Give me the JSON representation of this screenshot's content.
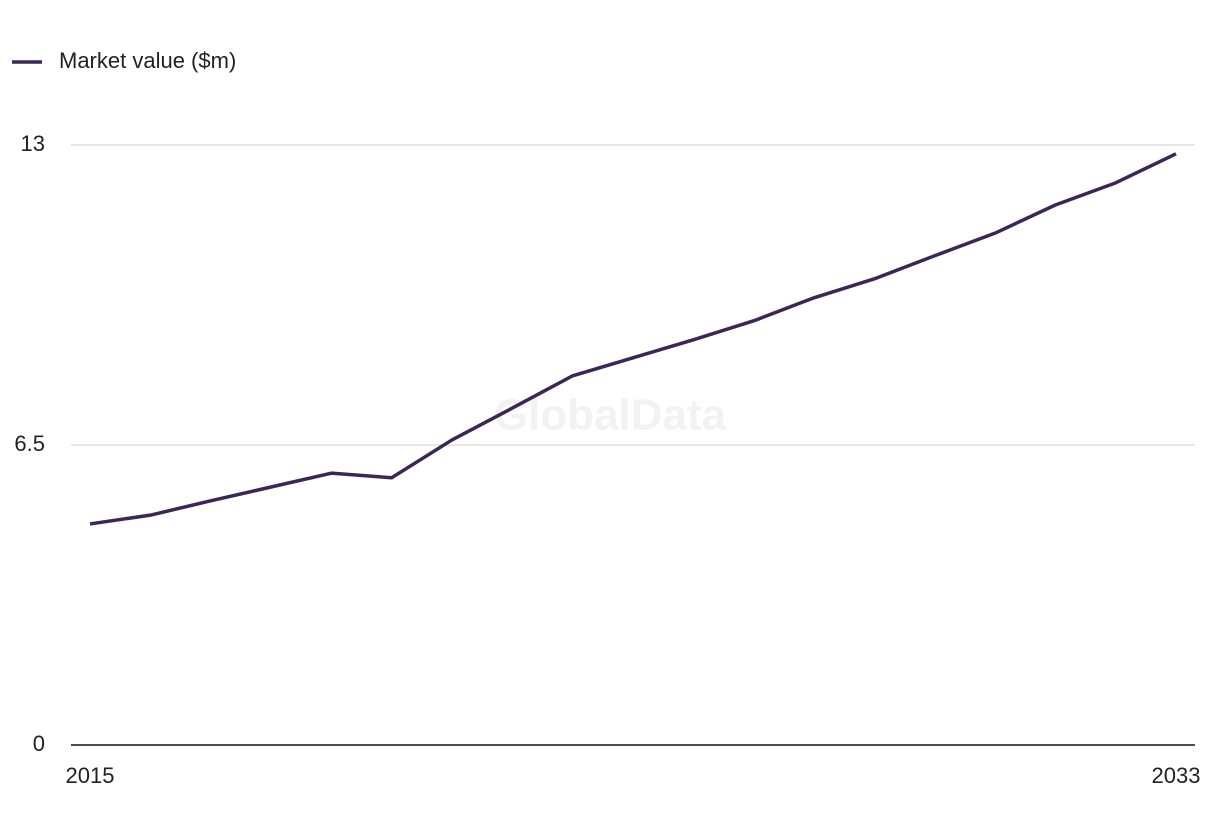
{
  "chart_data": {
    "type": "line",
    "watermark": "GlobalData",
    "x": [
      2015,
      2016,
      2017,
      2018,
      2019,
      2020,
      2021,
      2022,
      2023,
      2024,
      2025,
      2026,
      2027,
      2028,
      2029,
      2030,
      2031,
      2032,
      2033
    ],
    "series": [
      {
        "name": "Market value ($m)",
        "color": "#3b2656",
        "values": [
          4.79,
          4.98,
          5.29,
          5.59,
          5.89,
          5.79,
          6.61,
          7.3,
          8.0,
          8.39,
          8.78,
          9.19,
          9.69,
          10.1,
          10.6,
          11.09,
          11.7,
          12.18,
          12.81
        ]
      }
    ],
    "xlim": [
      2015,
      2033
    ],
    "xticks": [
      2015,
      2033
    ],
    "ylim": [
      0,
      13
    ],
    "yticks": [
      0,
      6.5,
      13
    ],
    "grid": true,
    "legend": "top-left"
  }
}
